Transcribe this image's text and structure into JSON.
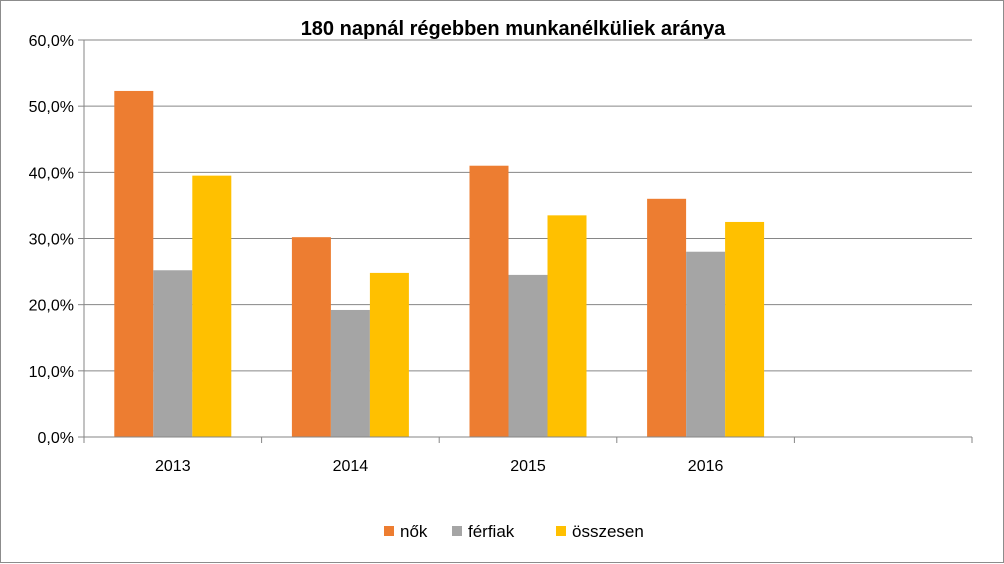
{
  "chart_data": {
    "type": "bar",
    "title": "180 napnál régebben munkanélküliek aránya",
    "xlabel": "",
    "ylabel": "",
    "categories": [
      "2013",
      "2014",
      "2015",
      "2016",
      ""
    ],
    "series": [
      {
        "name": "nők",
        "color": "#ED7D31",
        "values": [
          52.3,
          30.2,
          41.0,
          36.0,
          null
        ]
      },
      {
        "name": "férfiak",
        "color": "#A5A5A5",
        "values": [
          25.2,
          19.2,
          24.5,
          28.0,
          null
        ]
      },
      {
        "name": "összesen",
        "color": "#FFC000",
        "values": [
          39.5,
          24.8,
          33.5,
          32.5,
          null
        ]
      }
    ],
    "ylim": [
      0,
      60
    ],
    "yticks": [
      0,
      10,
      20,
      30,
      40,
      50,
      60
    ],
    "ytick_labels": [
      "0,0%",
      "10,0%",
      "20,0%",
      "30,0%",
      "40,0%",
      "50,0%",
      "60,0%"
    ],
    "grid": true,
    "legend_position": "bottom"
  }
}
